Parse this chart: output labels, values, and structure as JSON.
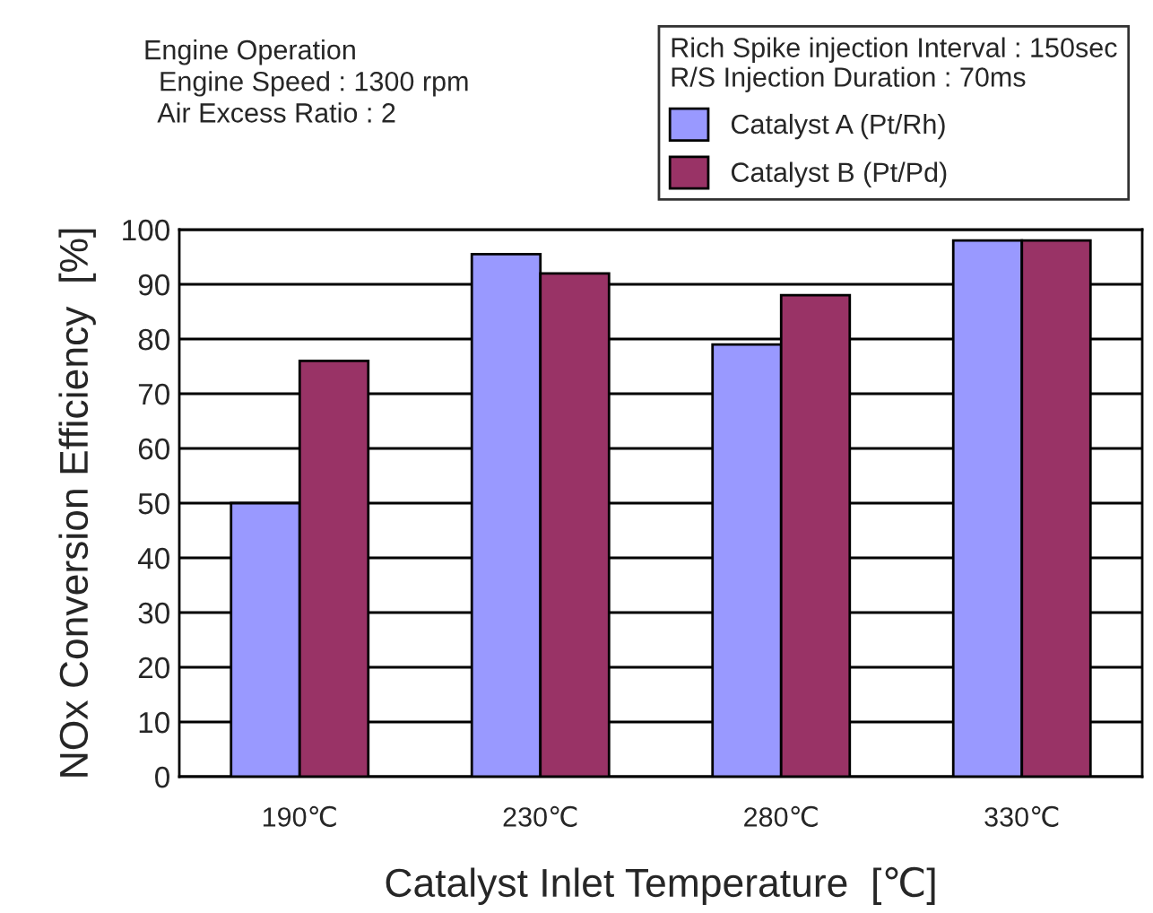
{
  "chart_data": {
    "type": "bar",
    "categories": [
      "190℃",
      "230℃",
      "280℃",
      "330℃"
    ],
    "series": [
      {
        "name": "Catalyst A (Pt/Rh)",
        "color": "#9999ff",
        "values": [
          50,
          95.5,
          79,
          98
        ]
      },
      {
        "name": "Catalyst B (Pt/Pd)",
        "color": "#993366",
        "values": [
          76,
          92,
          88,
          98
        ]
      }
    ],
    "xlabel": "Catalyst Inlet Temperature  [℃]",
    "ylabel": "NOx Conversion Efficiency  [%]",
    "legend_title": "Rich Spike injection Interval : 150sec\nR/S Injection Duration : 70ms",
    "annotations": [
      "Engine Operation\n  Engine Speed : 1300 rpm\n  Air Excess Ratio : 2"
    ],
    "ylim": [
      0,
      100
    ],
    "yticks": [
      0,
      10,
      20,
      30,
      40,
      50,
      60,
      70,
      80,
      90,
      100
    ],
    "grid": "y",
    "legend": "top right"
  }
}
